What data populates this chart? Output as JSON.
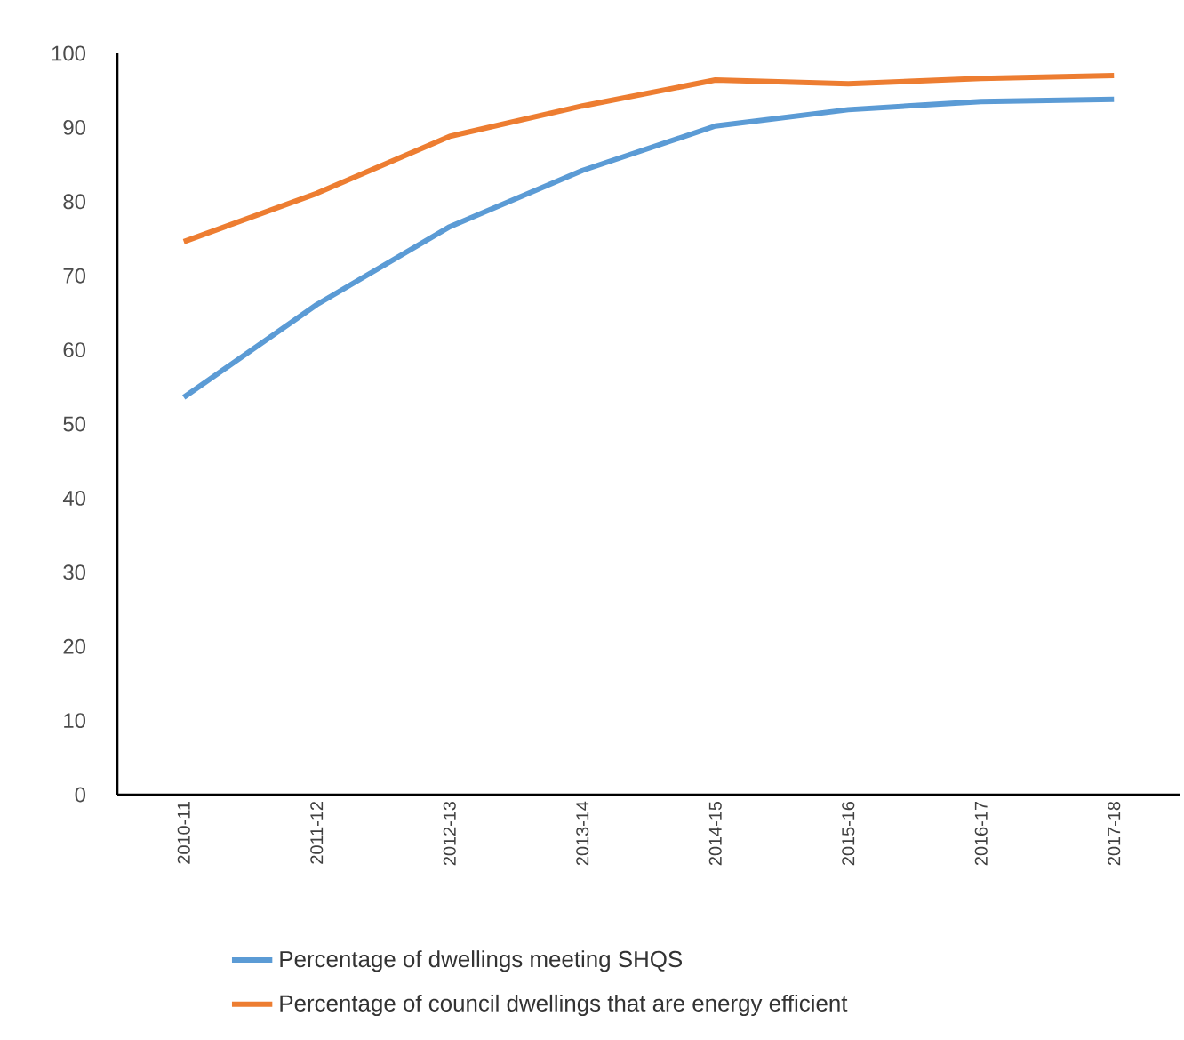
{
  "chart_data": {
    "type": "line",
    "categories": [
      "2010-11",
      "2011-12",
      "2012-13",
      "2013-14",
      "2014-15",
      "2015-16",
      "2016-17",
      "2017-18"
    ],
    "series": [
      {
        "name": "Percentage of dwellings meeting SHQS",
        "color": "#5b9bd5",
        "values": [
          53.6,
          66.1,
          76.6,
          84.2,
          90.2,
          92.4,
          93.5,
          93.8
        ]
      },
      {
        "name": "Percentage of council dwellings that are energy efficient",
        "color": "#ed7d31",
        "values": [
          74.6,
          81.1,
          88.8,
          92.9,
          96.4,
          95.9,
          96.6,
          97.0
        ]
      }
    ],
    "ylim": [
      0,
      100
    ],
    "yticks": [
      0,
      10,
      20,
      30,
      40,
      50,
      60,
      70,
      80,
      90,
      100
    ],
    "grid": false,
    "legend": "bottom",
    "marker": "none",
    "line_style": "solid"
  }
}
